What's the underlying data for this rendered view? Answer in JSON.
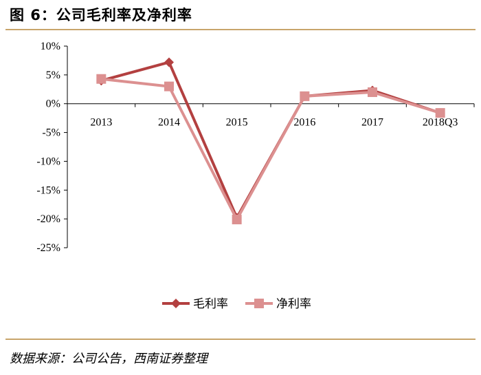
{
  "title": "图 6：公司毛利率及净利率",
  "source": "数据来源：公司公告，西南证券整理",
  "colors": {
    "gross": "#b34040",
    "net": "#dc9090",
    "axis": "#000000",
    "rule": "#c8a46a"
  },
  "chart_data": {
    "type": "line",
    "categories": [
      "2013",
      "2014",
      "2015",
      "2016",
      "2017",
      "2018Q3"
    ],
    "series": [
      {
        "name": "毛利率",
        "values": [
          4.0,
          7.2,
          -19.8,
          1.3,
          2.3,
          -1.6
        ],
        "marker": "diamond"
      },
      {
        "name": "净利率",
        "values": [
          4.3,
          3.0,
          -20.1,
          1.3,
          2.0,
          -1.6
        ],
        "marker": "square"
      }
    ],
    "yticks": [
      "10%",
      "5%",
      "0%",
      "-5%",
      "-10%",
      "-15%",
      "-20%",
      "-25%"
    ],
    "ylim": [
      -25,
      10
    ],
    "grid": false,
    "legend": "bottom-center"
  }
}
